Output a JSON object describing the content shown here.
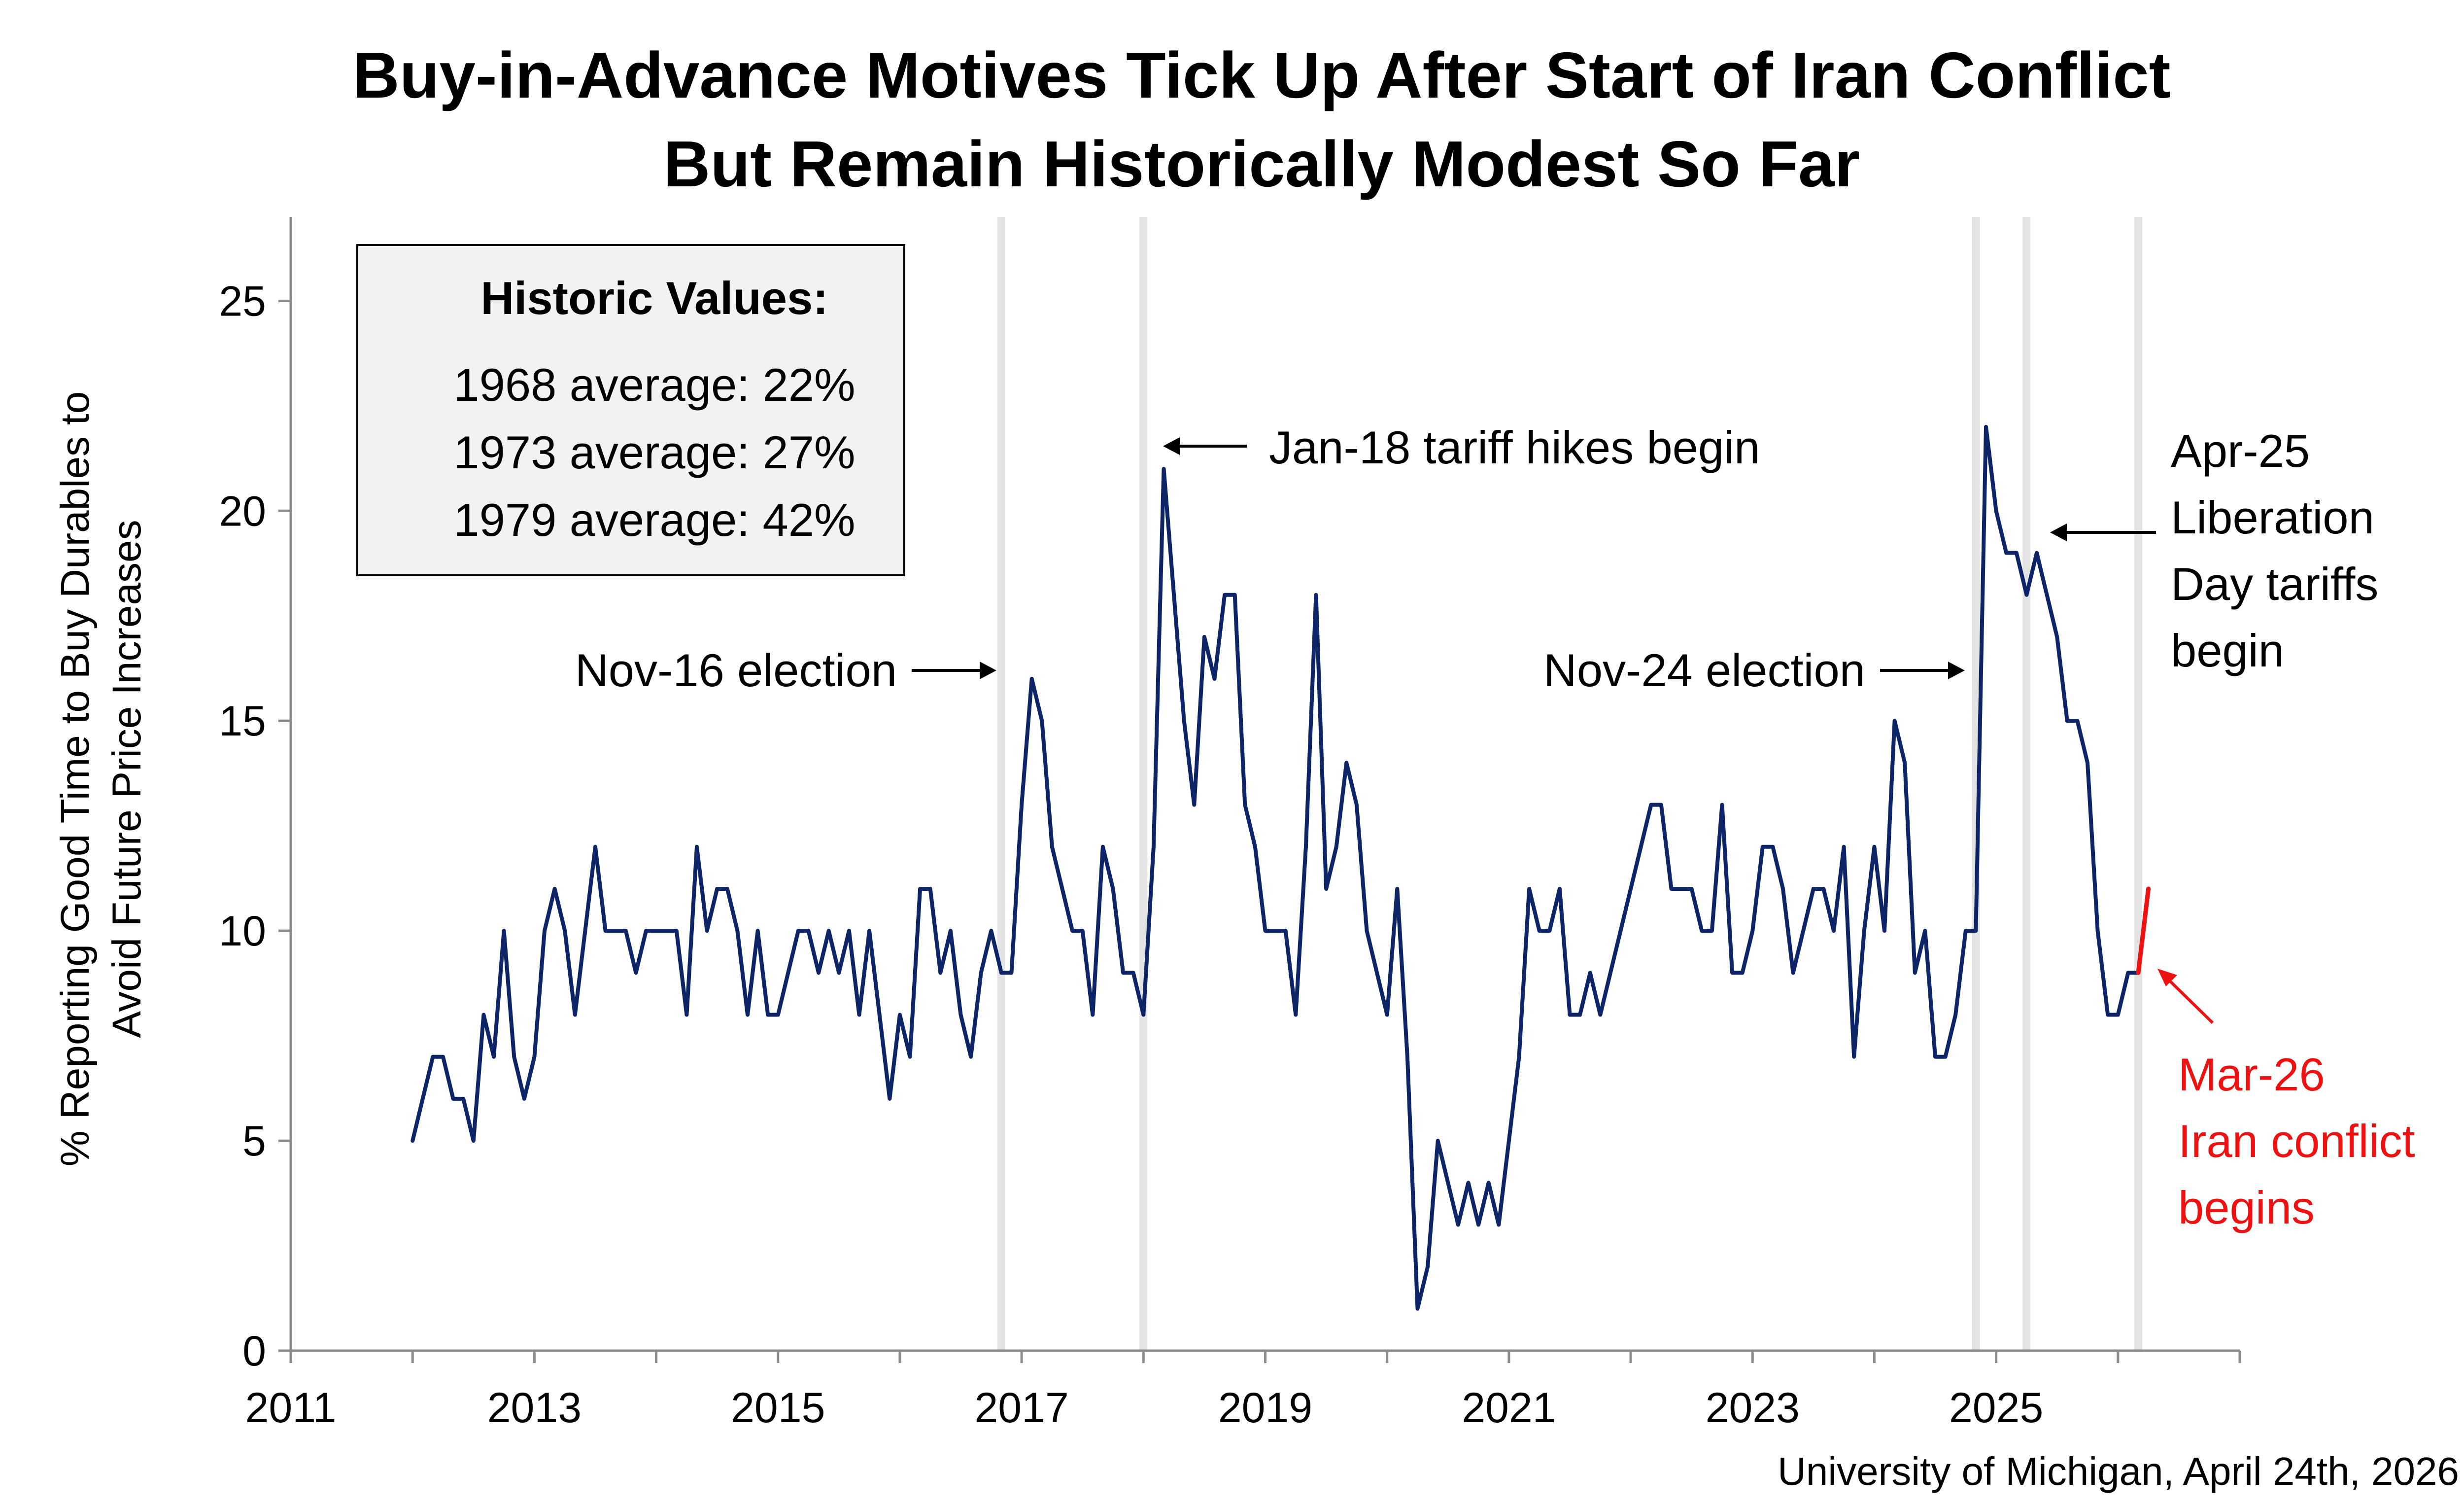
{
  "chart_data": {
    "type": "line",
    "title": [
      "Buy-in-Advance Motives Tick Up After Start of Iran Conflict",
      "But Remain Historically Modest So Far"
    ],
    "ylabel": [
      "% Reporting Good Time to Buy Durables to",
      "Avoid Future Price Increases"
    ],
    "xlabel": "",
    "xlim": [
      2011,
      2027
    ],
    "ylim": [
      0,
      27
    ],
    "xticks": [
      "2011",
      "2013",
      "2015",
      "2017",
      "2019",
      "2021",
      "2023",
      "2025"
    ],
    "yticks": [
      "0",
      "5",
      "10",
      "15",
      "20",
      "25"
    ],
    "colors": {
      "series": "#0d2466",
      "highlight": "#ee1111",
      "event_line": "#e3e3e3",
      "axis": "#8c8c8c",
      "text": "#000000",
      "box_fill": "#f2f2f2"
    },
    "series": [
      {
        "name": "Buy in advance",
        "start": "2012-01",
        "values": [
          5,
          6,
          7,
          7,
          6,
          6,
          5,
          8,
          7,
          10,
          7,
          6,
          7,
          10,
          11,
          10,
          8,
          10,
          12,
          10,
          10,
          10,
          9,
          10,
          10,
          10,
          10,
          8,
          12,
          10,
          11,
          11,
          10,
          8,
          10,
          8,
          8,
          9,
          10,
          10,
          9,
          10,
          9,
          10,
          8,
          10,
          8,
          6,
          8,
          7,
          11,
          11,
          9,
          10,
          8,
          7,
          9,
          10,
          9,
          9,
          13,
          16,
          15,
          12,
          11,
          10,
          10,
          8,
          12,
          11,
          9,
          9,
          8,
          12,
          21,
          18,
          15,
          13,
          17,
          16,
          18,
          18,
          13,
          12,
          10,
          10,
          10,
          8,
          12,
          18,
          11,
          12,
          14,
          13,
          10,
          9,
          8,
          11,
          7,
          1,
          2,
          5,
          4,
          3,
          4,
          3,
          4,
          3,
          5,
          7,
          11,
          10,
          10,
          11,
          8,
          8,
          9,
          8,
          9,
          10,
          11,
          12,
          13,
          13,
          11,
          11,
          11,
          10,
          10,
          13,
          9,
          9,
          10,
          12,
          12,
          11,
          9,
          10,
          11,
          11,
          10,
          12,
          7,
          10,
          12,
          10,
          15,
          14,
          9,
          10,
          7,
          7,
          8,
          10,
          10,
          22,
          20,
          19,
          19,
          18,
          19,
          18,
          17,
          15,
          15,
          14,
          10,
          8,
          8,
          9,
          9
        ]
      },
      {
        "name": "Post Iran conflict",
        "points": [
          {
            "x": "2026-03",
            "y": 9
          },
          {
            "x": "2026-04",
            "y": 11
          }
        ]
      }
    ],
    "event_lines": [
      {
        "label": "Nov-16 election",
        "x": "2016-11"
      },
      {
        "label": "Jan-18 tariff hikes begin",
        "x": "2018-01"
      },
      {
        "label": "Nov-24 election",
        "x": "2024-11"
      },
      {
        "label": "Apr-25 Liberation Day tariffs begin",
        "x": "2025-04"
      },
      {
        "label": "Mar-26 Iran conflict begins",
        "x": "2026-03"
      }
    ],
    "annotations": {
      "nov16": "Nov-16 election",
      "jan18": "Jan-18 tariff hikes begin",
      "nov24": "Nov-24 election",
      "apr25": [
        "Apr-25",
        "Liberation",
        "Day tariffs",
        "begin"
      ],
      "mar26": [
        "Mar-26",
        "Iran conflict",
        "begins"
      ]
    },
    "historic_box": {
      "title": "Historic Values:",
      "lines": [
        "1968 average: 22%",
        "1973 average: 27%",
        "1979 average: 42%"
      ]
    },
    "source": "University of Michigan, April 24th, 2026"
  }
}
